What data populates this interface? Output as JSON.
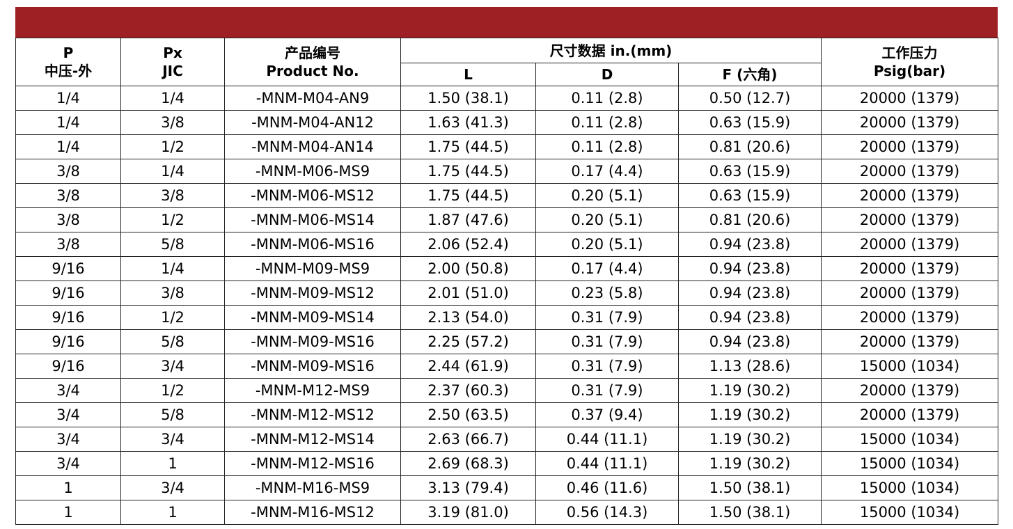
{
  "table": {
    "header": {
      "left": [
        [
          "P",
          "中压-外"
        ],
        [
          "Px",
          "JIC"
        ],
        [
          "产品编号",
          "Product No."
        ]
      ],
      "group": "尺寸数据  in.(mm)",
      "sub": [
        "L",
        "D",
        "F (六角)"
      ],
      "right": [
        "工作压力",
        "Psig(bar)"
      ]
    },
    "rows": [
      [
        "1/4",
        "1/4",
        "-MNM-M04-AN9",
        "1.50 (38.1)",
        "0.11 (2.8)",
        "0.50 (12.7)",
        "20000 (1379)"
      ],
      [
        "1/4",
        "3/8",
        "-MNM-M04-AN12",
        "1.63 (41.3)",
        "0.11 (2.8)",
        "0.63 (15.9)",
        "20000 (1379)"
      ],
      [
        "1/4",
        "1/2",
        "-MNM-M04-AN14",
        "1.75 (44.5)",
        "0.11 (2.8)",
        "0.81 (20.6)",
        "20000 (1379)"
      ],
      [
        "3/8",
        "1/4",
        "-MNM-M06-MS9",
        "1.75 (44.5)",
        "0.17 (4.4)",
        "0.63 (15.9)",
        "20000 (1379)"
      ],
      [
        "3/8",
        "3/8",
        "-MNM-M06-MS12",
        "1.75 (44.5)",
        "0.20 (5.1)",
        "0.63 (15.9)",
        "20000 (1379)"
      ],
      [
        "3/8",
        "1/2",
        "-MNM-M06-MS14",
        "1.87 (47.6)",
        "0.20 (5.1)",
        "0.81 (20.6)",
        "20000 (1379)"
      ],
      [
        "3/8",
        "5/8",
        "-MNM-M06-MS16",
        "2.06 (52.4)",
        "0.20 (5.1)",
        "0.94 (23.8)",
        "20000 (1379)"
      ],
      [
        "9/16",
        "1/4",
        "-MNM-M09-MS9",
        "2.00 (50.8)",
        "0.17 (4.4)",
        "0.94 (23.8)",
        "20000 (1379)"
      ],
      [
        "9/16",
        "3/8",
        "-MNM-M09-MS12",
        "2.01 (51.0)",
        "0.23 (5.8)",
        "0.94 (23.8)",
        "20000 (1379)"
      ],
      [
        "9/16",
        "1/2",
        "-MNM-M09-MS14",
        "2.13 (54.0)",
        "0.31 (7.9)",
        "0.94 (23.8)",
        "20000 (1379)"
      ],
      [
        "9/16",
        "5/8",
        "-MNM-M09-MS16",
        "2.25 (57.2)",
        "0.31 (7.9)",
        "0.94 (23.8)",
        "20000 (1379)"
      ],
      [
        "9/16",
        "3/4",
        "-MNM-M09-MS16",
        "2.44 (61.9)",
        "0.31 (7.9)",
        "1.13 (28.6)",
        "15000 (1034)"
      ],
      [
        "3/4",
        "1/2",
        "-MNM-M12-MS9",
        "2.37 (60.3)",
        "0.31 (7.9)",
        "1.19 (30.2)",
        "20000 (1379)"
      ],
      [
        "3/4",
        "5/8",
        "-MNM-M12-MS12",
        "2.50 (63.5)",
        "0.37 (9.4)",
        "1.19 (30.2)",
        "20000 (1379)"
      ],
      [
        "3/4",
        "3/4",
        "-MNM-M12-MS14",
        "2.63 (66.7)",
        "0.44 (11.1)",
        "1.19 (30.2)",
        "15000 (1034)"
      ],
      [
        "3/4",
        "1",
        "-MNM-M12-MS16",
        "2.69 (68.3)",
        "0.44 (11.1)",
        "1.19 (30.2)",
        "15000 (1034)"
      ],
      [
        "1",
        "3/4",
        "-MNM-M16-MS9",
        "3.13 (79.4)",
        "0.46 (11.6)",
        "1.50 (38.1)",
        "15000 (1034)"
      ],
      [
        "1",
        "1",
        "-MNM-M16-MS12",
        "3.19 (81.0)",
        "0.56 (14.3)",
        "1.50 (38.1)",
        "15000 (1034)"
      ]
    ]
  }
}
